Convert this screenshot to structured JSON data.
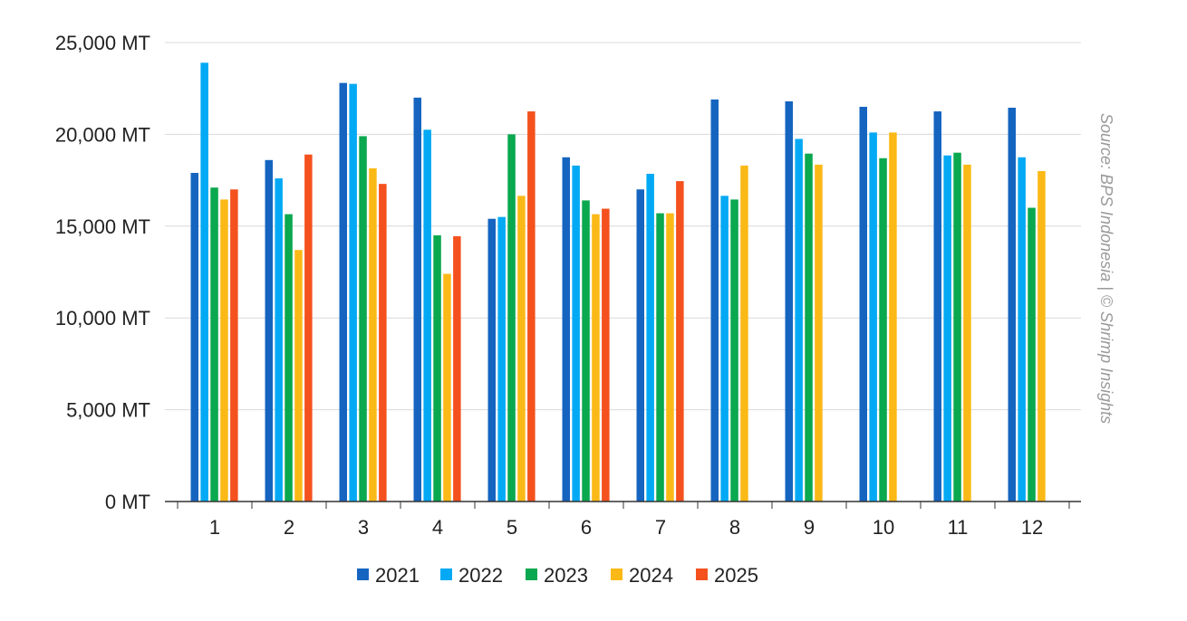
{
  "chart_data": {
    "type": "bar",
    "categories": [
      "1",
      "2",
      "3",
      "4",
      "5",
      "6",
      "7",
      "8",
      "9",
      "10",
      "11",
      "12"
    ],
    "series": [
      {
        "name": "2021",
        "color": "#1565c0",
        "values": [
          17900,
          18600,
          22800,
          22000,
          15400,
          18750,
          17000,
          21900,
          21800,
          21500,
          21250,
          21450
        ]
      },
      {
        "name": "2022",
        "color": "#03a9f4",
        "values": [
          23900,
          17600,
          22750,
          20250,
          15500,
          18300,
          17850,
          16650,
          19750,
          20100,
          18850,
          18750
        ]
      },
      {
        "name": "2023",
        "color": "#0aa84f",
        "values": [
          17100,
          15650,
          19900,
          14500,
          20000,
          16400,
          15700,
          16450,
          18950,
          18700,
          19000,
          16000
        ]
      },
      {
        "name": "2024",
        "color": "#fbb917",
        "values": [
          16450,
          13700,
          18150,
          12400,
          16650,
          15650,
          15700,
          18300,
          18350,
          20100,
          18350,
          18000
        ]
      },
      {
        "name": "2025",
        "color": "#f4511e",
        "values": [
          17000,
          18900,
          17300,
          14450,
          21250,
          15950,
          17450,
          null,
          null,
          null,
          null,
          null
        ]
      }
    ],
    "yticks": [
      "0 MT",
      "5,000 MT",
      "10,000 MT",
      "15,000 MT",
      "20,000 MT",
      "25,000 MT"
    ],
    "ylim": [
      0,
      25000
    ],
    "grid": true,
    "legend_position": "bottom",
    "source_note": "Source: BPS Indonesia | © Shrimp Insights"
  }
}
